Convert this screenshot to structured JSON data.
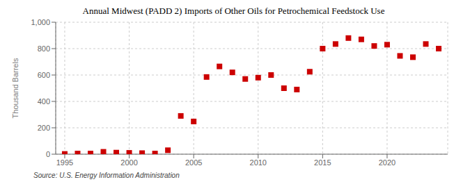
{
  "chart_data": {
    "type": "scatter",
    "title": "Annual Midwest (PADD 2) Imports of Other Oils for Petrochemical Feedstock Use",
    "ylabel": "Thousand Barrels",
    "annotations": [
      "Source: U.S. Energy Information Administration"
    ],
    "x": [
      1995,
      1996,
      1997,
      1998,
      1999,
      2000,
      2001,
      2002,
      2003,
      2004,
      2005,
      2006,
      2007,
      2008,
      2009,
      2010,
      2011,
      2012,
      2013,
      2014,
      2015,
      2016,
      2017,
      2018,
      2019,
      2020,
      2021,
      2022,
      2023,
      2024
    ],
    "values": [
      2,
      5,
      5,
      18,
      12,
      10,
      8,
      5,
      30,
      290,
      248,
      585,
      665,
      620,
      570,
      580,
      600,
      500,
      490,
      625,
      800,
      835,
      880,
      870,
      820,
      830,
      745,
      735,
      835,
      800
    ],
    "color": "#cc0000",
    "marker": "square",
    "xlim": [
      1994.3,
      2024.7
    ],
    "xticks": [
      1995,
      2000,
      2005,
      2010,
      2015,
      2020
    ],
    "ylim": [
      0,
      1000
    ],
    "yticks": [
      0,
      200,
      400,
      600,
      800,
      {
        "value": 1000,
        "label": "1,000"
      }
    ],
    "grid": true
  }
}
